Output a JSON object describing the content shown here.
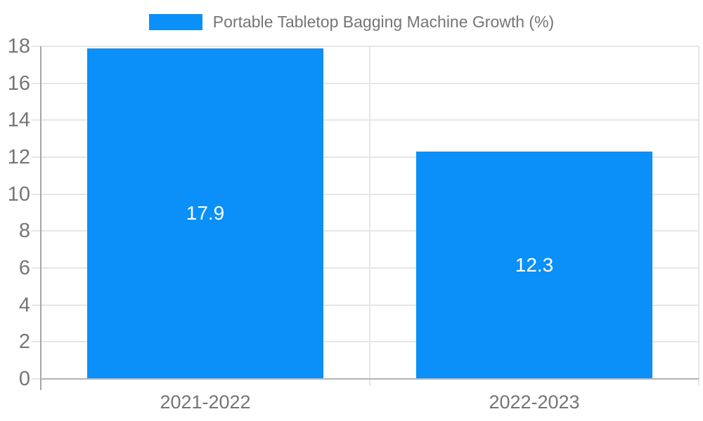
{
  "legend": {
    "position": "top",
    "label": "Portable Tabletop Bagging Machine Growth (%)"
  },
  "colors": {
    "bar": "#0A90F8",
    "axis_text": "#757575",
    "grid": "#E6E6E6",
    "x_axis_line": "#B3B3B3",
    "y_axis_line": "#A6A6A6",
    "data_label": "#FFFFFF",
    "background": "#FFFFFF"
  },
  "chart_data": {
    "type": "bar",
    "title": "Portable Tabletop Bagging Machine Growth (%)",
    "categories": [
      "2021-2022",
      "2022-2023"
    ],
    "values": [
      17.9,
      12.3
    ],
    "data_labels": [
      "17.9",
      "12.3"
    ],
    "yticks": [
      0,
      2,
      4,
      6,
      8,
      10,
      12,
      14,
      16,
      18
    ],
    "ylim": [
      0,
      18
    ],
    "ytick_step": 2,
    "xlabel": "",
    "ylabel": "",
    "grid": true,
    "legend_position": "top"
  }
}
